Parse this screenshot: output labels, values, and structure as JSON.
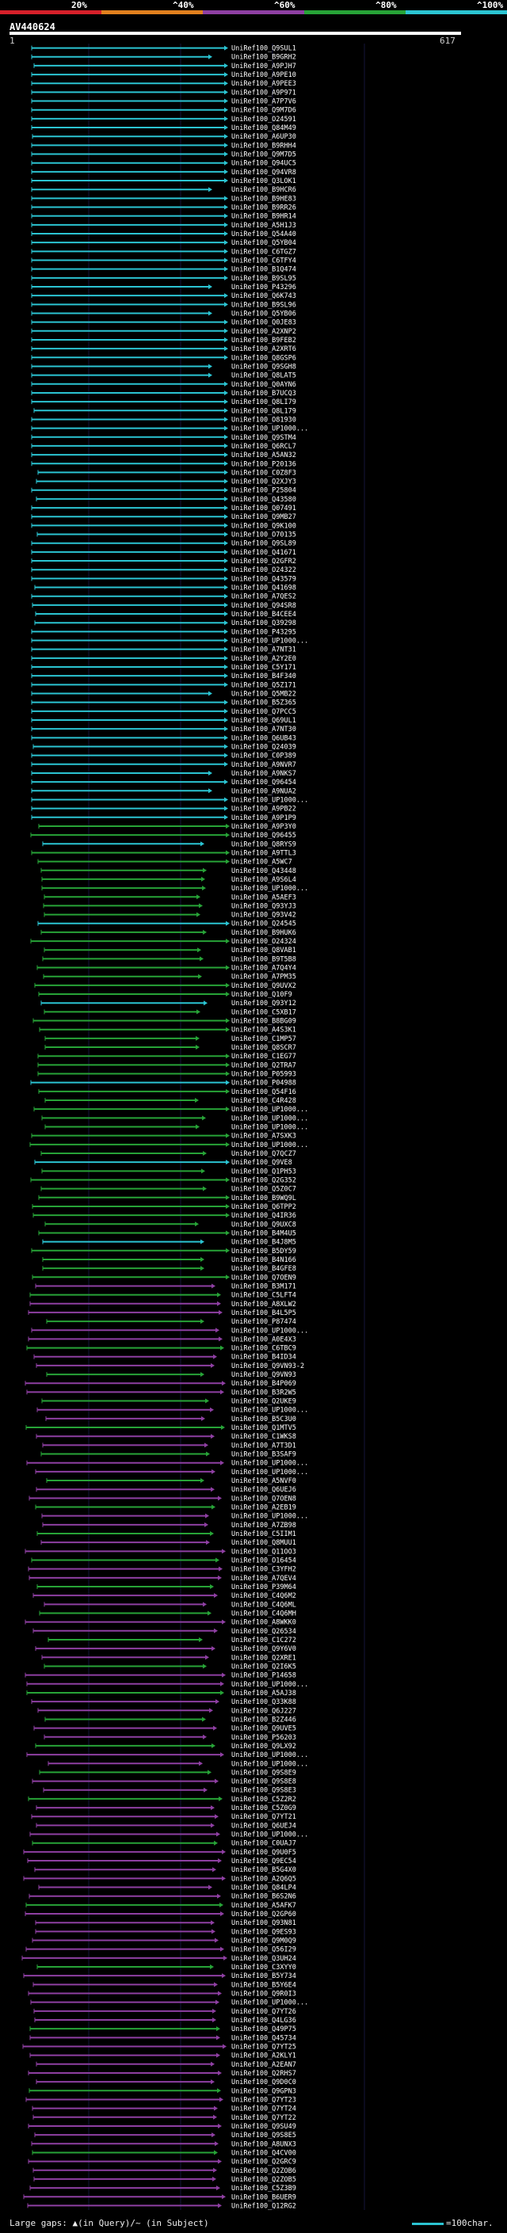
{
  "query": {
    "title": "AV440624",
    "start": "1",
    "end": "617",
    "length": 617
  },
  "identity_scale": [
    {
      "label": "20%",
      "color": "#d6202a"
    },
    {
      "label": "^40%",
      "color": "#e1801e"
    },
    {
      "label": "^60%",
      "color": "#8e3fa2"
    },
    {
      "label": "^80%",
      "color": "#27a337"
    },
    {
      "label": "^100%",
      "color": "#2bc4d2"
    }
  ],
  "legend": {
    "gaps_text": "Large gaps: ▲(in Query)/~ (in Subject)",
    "scale_text": "=100char."
  },
  "hit_ids": [
    "UniRef100_Q9SUL1",
    "UniRef100_B9GRH2",
    "UniRef100_A9PJH7",
    "UniRef100_A9PE10",
    "UniRef100_A9PEE3",
    "UniRef100_A9P971",
    "UniRef100_A7P7V6",
    "UniRef100_Q9M7D6",
    "UniRef100_O24591",
    "UniRef100_Q84M49",
    "UniRef100_A6UP30",
    "UniRef100_B9RHH4",
    "UniRef100_Q9M7D5",
    "UniRef100_Q94UC5",
    "UniRef100_Q94VR8",
    "UniRef100_Q3LOK1",
    "UniRef100_B9HCR6",
    "UniRef100_B9HE83",
    "UniRef100_B9RR26",
    "UniRef100_B9HR14",
    "UniRef100_A5H1J3",
    "UniRef100_Q54A40",
    "UniRef100_Q5YB04",
    "UniRef100_C6TGZ7",
    "UniRef100_C6TFY4",
    "UniRef100_B1Q474",
    "UniRef100_B9SL95",
    "UniRef100_P43296",
    "UniRef100_Q6K743",
    "UniRef100_B9SL96",
    "UniRef100_Q5YB06",
    "UniRef100_Q0JE83",
    "UniRef100_A2XNP2",
    "UniRef100_B9FEB2",
    "UniRef100_A2XRT6",
    "UniRef100_Q8GSP6",
    "UniRef100_Q9SGH8",
    "UniRef100_Q8LAT5",
    "UniRef100_Q0AYN6",
    "UniRef100_B7UCQ3",
    "UniRef100_Q8LI79",
    "UniRef100_Q8L179",
    "UniRef100_O81930",
    "UniRef100_UP1000...",
    "UniRef100_Q9STM4",
    "UniRef100_Q6RCL7",
    "UniRef100_A5AN32",
    "UniRef100_P20136",
    "UniRef100_C0Z8F3",
    "UniRef100_Q2XJY3",
    "UniRef100_P25804",
    "UniRef100_Q43580",
    "UniRef100_Q07491",
    "UniRef100_Q9MB27",
    "UniRef100_Q9K100",
    "UniRef100_O70135",
    "UniRef100_Q9SL89",
    "UniRef100_Q41671",
    "UniRef100_Q2GFR2",
    "UniRef100_O24322",
    "UniRef100_Q43579",
    "UniRef100_Q41698",
    "UniRef100_A7QES2",
    "UniRef100_Q94SR8",
    "UniRef100_B4CEE4",
    "UniRef100_Q39298",
    "UniRef100_P43295",
    "UniRef100_UP1000...",
    "UniRef100_A7NT31",
    "UniRef100_A2Y2E0",
    "UniRef100_C5Y171",
    "UniRef100_B4F340",
    "UniRef100_Q5Z171",
    "UniRef100_Q5MB22",
    "UniRef100_B5Z365",
    "UniRef100_Q7PCC5",
    "UniRef100_Q69UL1",
    "UniRef100_A7NT30",
    "UniRef100_Q6UB43",
    "UniRef100_Q24039",
    "UniRef100_C0P389",
    "UniRef100_A9NVR7",
    "UniRef100_A9NKS7",
    "UniRef100_Q96454",
    "UniRef100_A9NUA2",
    "UniRef100_UP1000...",
    "UniRef100_A9PB22",
    "UniRef100_A9P1P9",
    "UniRef100_A9P3Y0",
    "UniRef100_Q96455",
    "UniRef100_Q8RYS9",
    "UniRef100_A9TTL3",
    "UniRef100_A5WC7",
    "UniRef100_Q43448",
    "UniRef100_A9S6L4",
    "UniRef100_UP1000...",
    "UniRef100_A5AEF3",
    "UniRef100_Q93YJ3",
    "UniRef100_Q93V42",
    "UniRef100_Q24545",
    "UniRef100_B9HUK6",
    "UniRef100_O24324",
    "UniRef100_Q8VAB1",
    "UniRef100_B9T5B8",
    "UniRef100_A7Q4Y4",
    "UniRef100_A7PM35",
    "UniRef100_Q9UVX2",
    "UniRef100_Q10F9",
    "UniRef100_Q93Y12",
    "UniRef100_C5XB17",
    "UniRef100_B8BG09",
    "UniRef100_A4S3K1",
    "UniRef100_C1MP57",
    "UniRef100_Q8SCR7",
    "UniRef100_C1EG77",
    "UniRef100_Q2TRA7",
    "UniRef100_P05993",
    "UniRef100_P04988",
    "UniRef100_Q54F16",
    "UniRef100_C4R428",
    "UniRef100_UP1000...",
    "UniRef100_UP1000...",
    "UniRef100_UP1000...",
    "UniRef100_A7SXK3",
    "UniRef100_UP1000...",
    "UniRef100_Q7QCZ7",
    "UniRef100_Q9VE8",
    "UniRef100_Q1PH53",
    "UniRef100_Q2G352",
    "UniRef100_Q5Z0C7",
    "UniRef100_B9WQ9L",
    "UniRef100_Q6TPP2",
    "UniRef100_Q4IR36",
    "UniRef100_Q9UXC8",
    "UniRef100_B4M4U5",
    "UniRef100_B4J8M5",
    "UniRef100_B5DY59",
    "UniRef100_B4N166",
    "UniRef100_B4GFE8",
    "UniRef100_Q7OEN9",
    "UniRef100_B3M171",
    "UniRef100_C5LFT4",
    "UniRef100_A8XLW2",
    "UniRef100_B4L5P5",
    "UniRef100_P87474",
    "UniRef100_UP1000...",
    "UniRef100_A0E4X3",
    "UniRef100_C6TBC9",
    "UniRef100_B4ID34",
    "UniRef100_Q9VN93-2",
    "UniRef100_Q9VN93",
    "UniRef100_B4P069",
    "UniRef100_B3R2W5",
    "UniRef100_Q2UKE9",
    "UniRef100_UP1000...",
    "UniRef100_B5C3U0",
    "UniRef100_Q1MTV5",
    "UniRef100_C1WKS8",
    "UniRef100_A7T3D1",
    "UniRef100_B3SAF9",
    "UniRef100_UP1000...",
    "UniRef100_UP1000...",
    "UniRef100_A5NVF0",
    "UniRef100_Q6UEJ6",
    "UniRef100_Q7OEN8",
    "UniRef100_A2EB19",
    "UniRef100_UP1000...",
    "UniRef100_A7ZB98",
    "UniRef100_C5IIM1",
    "UniRef100_Q8MUU1",
    "UniRef100_Q11OO3",
    "UniRef100_O16454",
    "UniRef100_C3YFH2",
    "UniRef100_A7QEV4",
    "UniRef100_P39M64",
    "UniRef100_C4Q6M2",
    "UniRef100_C4Q6ML",
    "UniRef100_C4Q6MH",
    "UniRef100_A8WKK0",
    "UniRef100_Q26534",
    "UniRef100_C1C272",
    "UniRef100_Q9Y6V0",
    "UniRef100_Q2XRE1",
    "UniRef100_Q2I6K5",
    "UniRef100_P14658",
    "UniRef100_UP1000...",
    "UniRef100_A5AJ38",
    "UniRef100_Q33K88",
    "UniRef100_Q6J227",
    "UniRef100_B2Z446",
    "UniRef100_Q9UVE5",
    "UniRef100_P56203",
    "UniRef100_Q9LX92",
    "UniRef100_UP1000...",
    "UniRef100_UP1000...",
    "UniRef100_Q9S8E9",
    "UniRef100_Q9S8E8",
    "UniRef100_Q9S8E3",
    "UniRef100_C5Z2R2",
    "UniRef100_C5Z0G9",
    "UniRef100_Q7YT21",
    "UniRef100_Q6UEJ4",
    "UniRef100_UP1000...",
    "UniRef100_C0UAJ7",
    "UniRef100_Q9U0F5",
    "UniRef100_Q9EC54",
    "UniRef100_B5G4X0",
    "UniRef100_A2Q6Q5",
    "UniRef100_Q84LP4",
    "UniRef100_B6S2N6",
    "UniRef100_A5AFK7",
    "UniRef100_Q2GP60",
    "UniRef100_Q93N81",
    "UniRef100_Q9ES93",
    "UniRef100_Q9M0Q9",
    "UniRef100_Q56I29",
    "UniRef100_Q3UH24",
    "UniRef100_C3XYY0",
    "UniRef100_B5Y734",
    "UniRef100_B5Y6E4",
    "UniRef100_Q9R0I3",
    "UniRef100_UP1000...",
    "UniRef100_Q7YT26",
    "UniRef100_Q4LG36",
    "UniRef100_Q49P75",
    "UniRef100_Q45734",
    "UniRef100_Q7YT25",
    "UniRef100_A2KLY1",
    "UniRef100_A2EAN7",
    "UniRef100_Q2RHS7",
    "UniRef100_Q9D0C0",
    "UniRef100_Q9GPN3",
    "UniRef100_Q7YT23",
    "UniRef100_Q7YT24",
    "UniRef100_Q7YT22",
    "UniRef100_Q9SU49",
    "UniRef100_Q9S8E5",
    "UniRef100_A8UNX3",
    "UniRef100_Q4CV00",
    "UniRef100_Q2GRC9",
    "UniRef100_Q2ZOB6",
    "UniRef100_Q2ZOB5",
    "UniRef100_C5Z3B9",
    "UniRef100_B6UER9",
    "UniRef100_Q12RG2"
  ]
}
